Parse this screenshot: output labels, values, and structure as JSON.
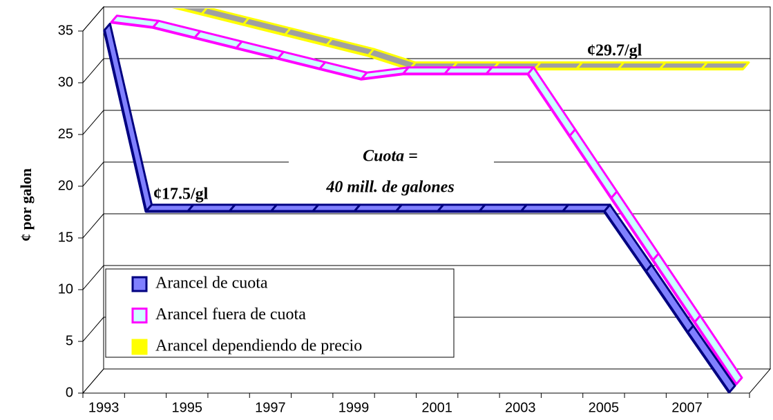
{
  "chart_data": {
    "type": "line3d",
    "y_label": "¢ por galon",
    "categories": [
      "1993",
      null,
      "1995",
      null,
      "1997",
      null,
      "1999",
      null,
      "2001",
      null,
      "2003",
      null,
      "2005",
      null,
      "2007",
      null
    ],
    "series": [
      {
        "name": "Arancel de cuota",
        "color": "#000080",
        "fill": "#8080ff",
        "values": [
          35,
          17.5,
          17.5,
          17.5,
          17.5,
          17.5,
          17.5,
          17.5,
          17.5,
          17.5,
          17.5,
          17.5,
          17.5,
          11.7,
          5.8,
          0
        ]
      },
      {
        "name": "Arancel fuera de cuota",
        "color": "#ff00ff",
        "fill": "#ccffff",
        "values": [
          35,
          34.5,
          33.5,
          32.5,
          31.5,
          30.5,
          29.5,
          30,
          30,
          30,
          30,
          24,
          18,
          12,
          6,
          0
        ]
      },
      {
        "name": "Arancel dependiendo de precio",
        "color": "#ffff00",
        "fill": "#a0a0a0",
        "legend_fill": "#ffff00",
        "values": [
          36,
          36,
          35,
          34,
          33,
          32,
          31,
          29.7,
          29.7,
          29.7,
          29.7,
          29.7,
          29.7,
          29.7,
          29.7,
          29.7
        ]
      }
    ],
    "ylim": [
      0,
      35
    ],
    "yticks": [
      0,
      5,
      10,
      15,
      20,
      25,
      30,
      35
    ],
    "grid": true,
    "legend": "lower left",
    "annotations": [
      "¢17.5/gl",
      "¢29.7/gl",
      "Cuota =",
      "40 mill. de galones"
    ]
  }
}
